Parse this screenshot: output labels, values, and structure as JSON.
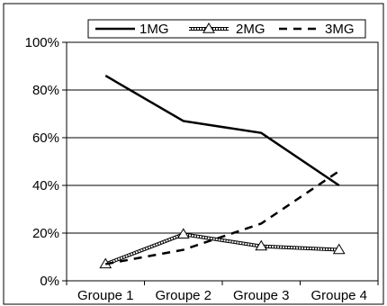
{
  "chart_data": {
    "type": "line",
    "categories": [
      "Groupe 1",
      "Groupe 2",
      "Groupe 3",
      "Groupe 4"
    ],
    "series": [
      {
        "name": "1MG",
        "values": [
          86,
          67,
          62,
          40
        ],
        "style": "solid"
      },
      {
        "name": "2MG",
        "values": [
          7,
          19.5,
          14.5,
          13
        ],
        "style": "double-triangle"
      },
      {
        "name": "3MG",
        "values": [
          7,
          13,
          24,
          46
        ],
        "style": "dashed"
      }
    ],
    "y_ticks": [
      "0%",
      "20%",
      "40%",
      "60%",
      "80%",
      "100%"
    ],
    "ylim": [
      0,
      100
    ],
    "grid": true,
    "legend_position": "top",
    "colors": {
      "line": "#000000",
      "grid": "#000000",
      "background": "#ffffff"
    }
  }
}
